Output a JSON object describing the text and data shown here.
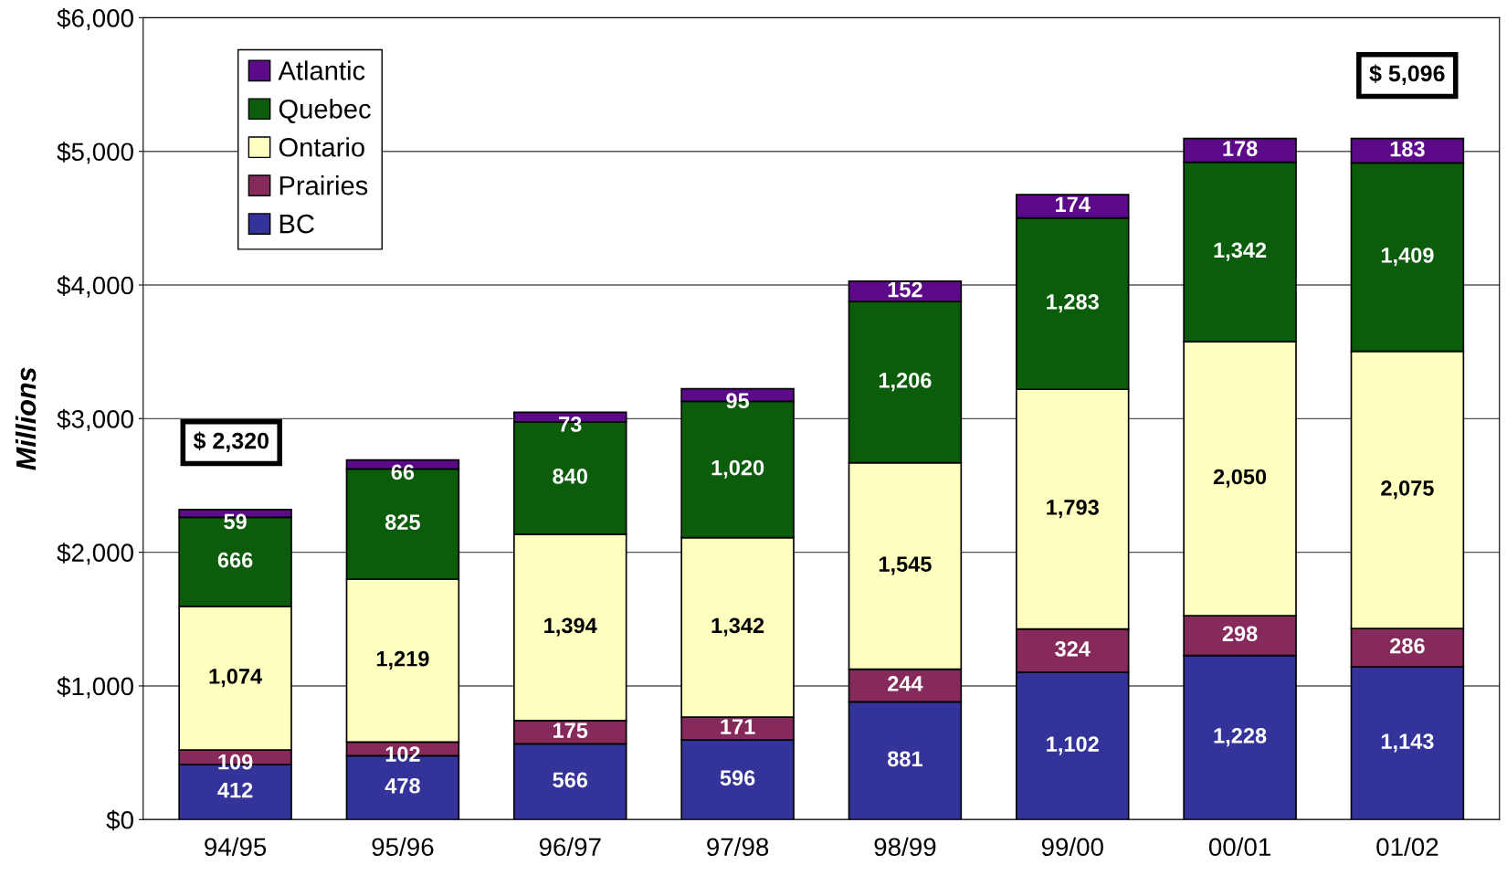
{
  "chart_data": {
    "type": "bar",
    "stacked": true,
    "ylabel": "Millions",
    "categories": [
      "94/95",
      "95/96",
      "96/97",
      "97/98",
      "98/99",
      "99/00",
      "00/01",
      "01/02"
    ],
    "series": [
      {
        "name": "BC",
        "color": "#333399",
        "values": [
          412,
          478,
          566,
          596,
          881,
          1102,
          1228,
          1143
        ],
        "value_labels": [
          "412",
          "478",
          "566",
          "596",
          "881",
          "1,102",
          "1,228",
          "1,143"
        ]
      },
      {
        "name": "Prairies",
        "color": "#862a5c",
        "values": [
          109,
          102,
          175,
          171,
          244,
          324,
          298,
          286
        ],
        "value_labels": [
          "109",
          "102",
          "175",
          "171",
          "244",
          "324",
          "298",
          "286"
        ]
      },
      {
        "name": "Ontario",
        "color": "#ffffc0",
        "values": [
          1074,
          1219,
          1394,
          1342,
          1545,
          1793,
          2050,
          2075
        ],
        "value_labels": [
          "1,074",
          "1,219",
          "1,394",
          "1,342",
          "1,545",
          "1,793",
          "2,050",
          "2,075"
        ]
      },
      {
        "name": "Quebec",
        "color": "#0b5c0b",
        "values": [
          666,
          825,
          840,
          1020,
          1206,
          1283,
          1342,
          1409
        ],
        "value_labels": [
          "666",
          "825",
          "840",
          "1,020",
          "1,206",
          "1,283",
          "1,342",
          "1,409"
        ]
      },
      {
        "name": "Atlantic",
        "color": "#5c0a8a",
        "values": [
          59,
          66,
          73,
          95,
          152,
          174,
          178,
          183
        ],
        "value_labels": [
          "59",
          "66",
          "73",
          "95",
          "152",
          "174",
          "178",
          "183"
        ]
      }
    ],
    "ylim": [
      0,
      6000
    ],
    "yticks": [
      {
        "value": 0,
        "label": "$0"
      },
      {
        "value": 1000,
        "label": "$1,000"
      },
      {
        "value": 2000,
        "label": "$2,000"
      },
      {
        "value": 3000,
        "label": "$3,000"
      },
      {
        "value": 4000,
        "label": "$4,000"
      },
      {
        "value": 5000,
        "label": "$5,000"
      },
      {
        "value": 6000,
        "label": "$6,000"
      }
    ],
    "grid": "y",
    "legend": "top left",
    "annotations": [
      "$ 2,320",
      "$ 5,096"
    ]
  }
}
